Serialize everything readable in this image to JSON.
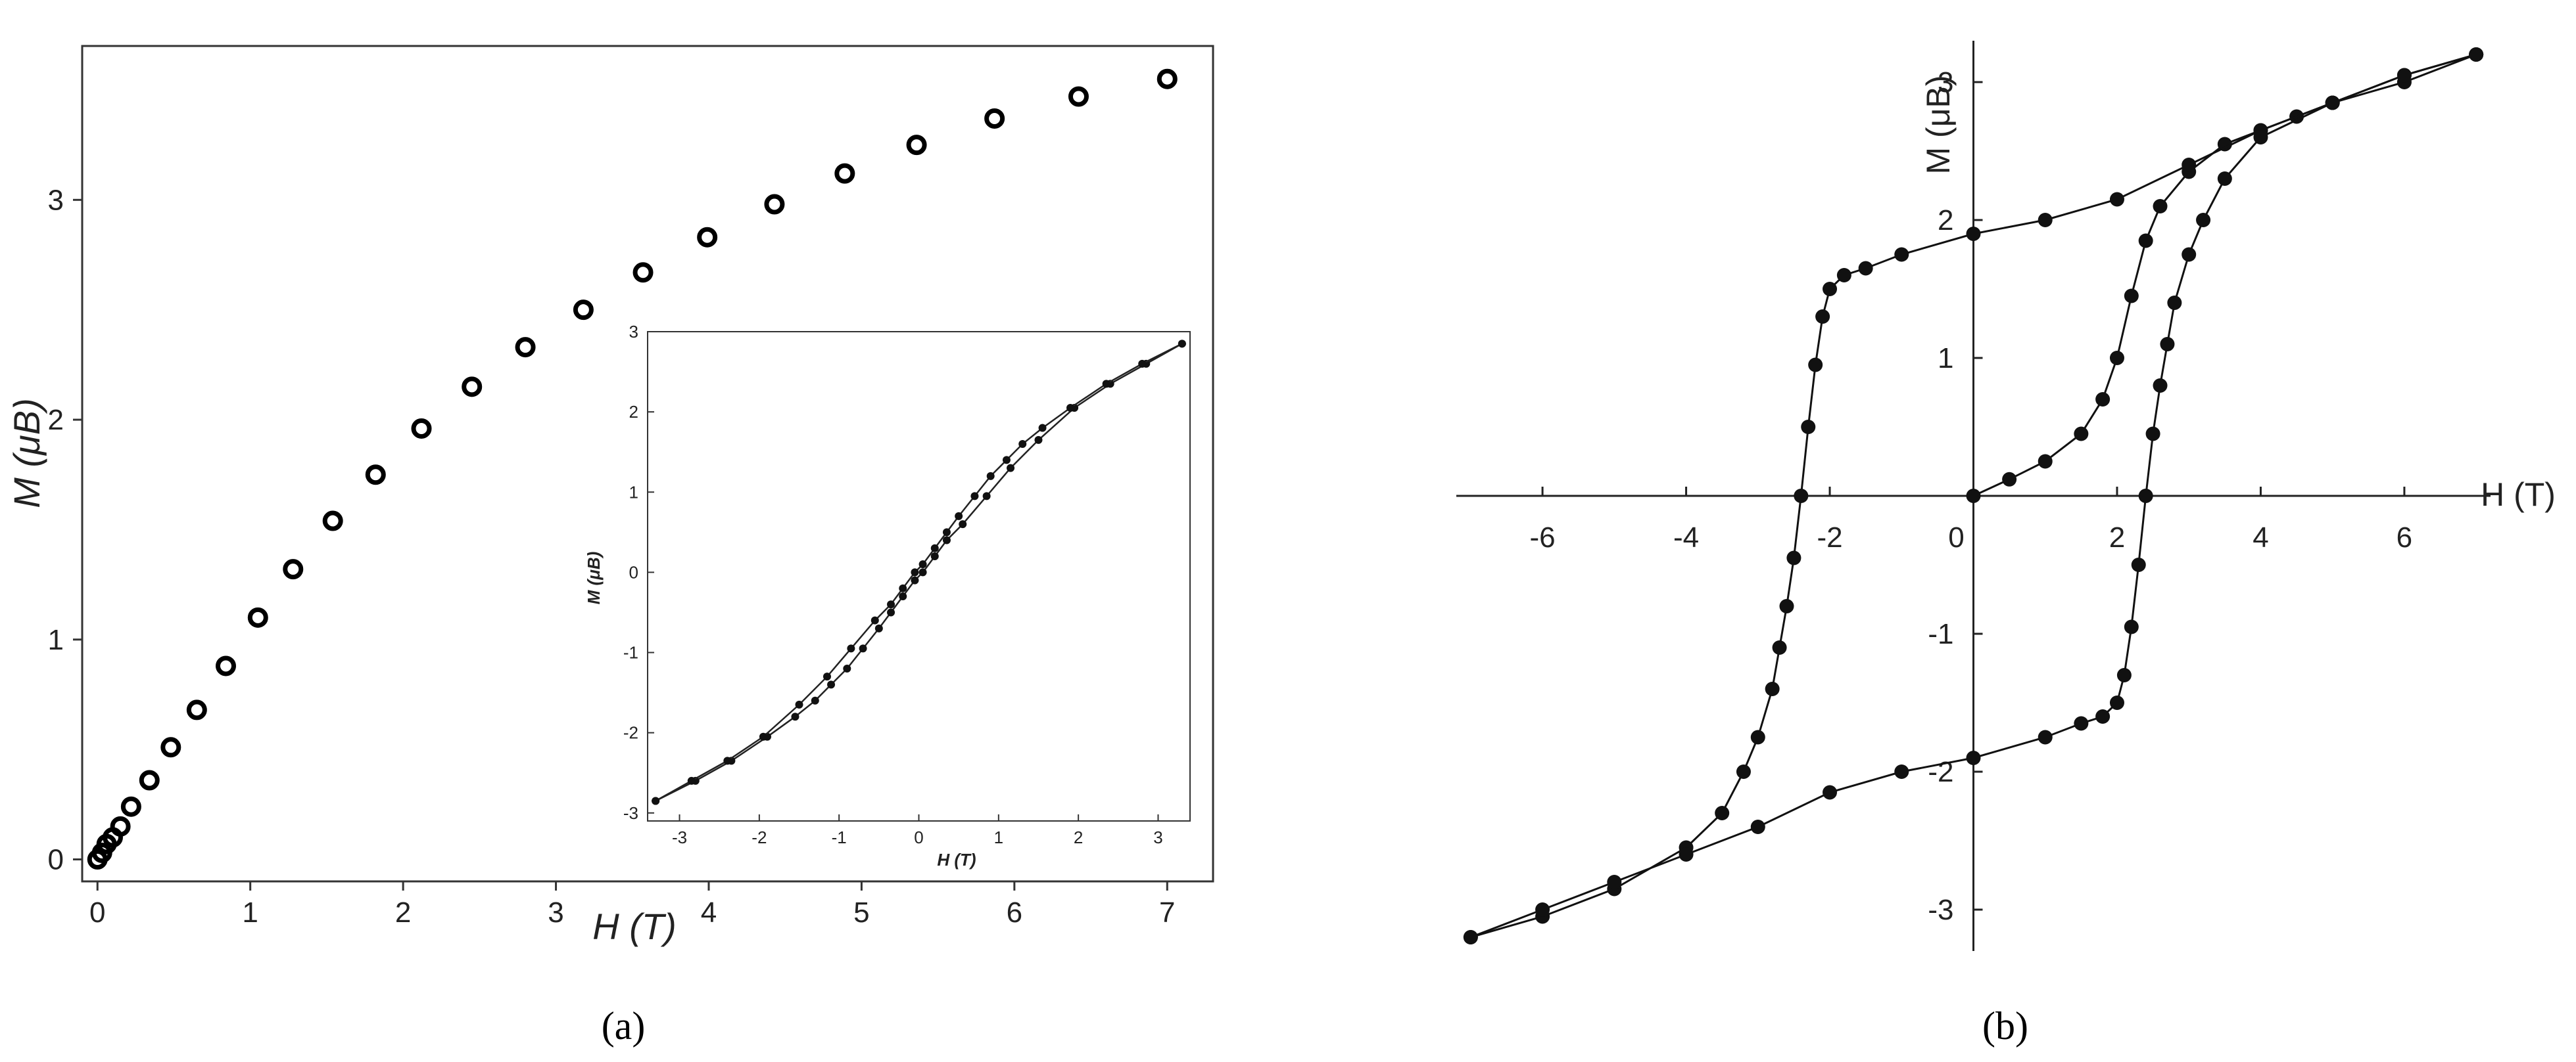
{
  "chart_data": [
    {
      "type": "scatter",
      "caption": "(a)",
      "xlabel": "H (T)",
      "ylabel": "M (μB)",
      "xlim": [
        -0.1,
        7.3
      ],
      "ylim": [
        -0.1,
        3.7
      ],
      "xticks": [
        0,
        1,
        2,
        3,
        4,
        5,
        6,
        7
      ],
      "yticks": [
        0,
        1,
        2,
        3
      ],
      "marker": "open-circle",
      "series": [
        {
          "x": [
            0.0,
            0.03,
            0.06,
            0.1,
            0.15,
            0.22,
            0.34,
            0.48,
            0.65,
            0.84,
            1.05,
            1.28,
            1.54,
            1.82,
            2.12,
            2.45,
            2.8,
            3.18,
            3.57,
            3.99,
            4.43,
            4.89,
            5.36,
            5.87,
            6.42,
            7.0
          ],
          "y": [
            0.0,
            0.03,
            0.07,
            0.1,
            0.15,
            0.24,
            0.36,
            0.51,
            0.68,
            0.88,
            1.1,
            1.32,
            1.54,
            1.75,
            1.96,
            2.15,
            2.33,
            2.5,
            2.67,
            2.83,
            2.98,
            3.12,
            3.25,
            3.37,
            3.47,
            3.55
          ]
        }
      ],
      "inset": {
        "type": "line",
        "xlabel": "H (T)",
        "ylabel": "M (μB)",
        "xlim": [
          -3.4,
          3.4
        ],
        "ylim": [
          -3.1,
          3.0
        ],
        "xticks": [
          -3,
          -2,
          -1,
          0,
          1,
          2,
          3
        ],
        "yticks": [
          -3,
          -2,
          -1,
          0,
          1,
          2,
          3
        ],
        "series": [
          {
            "x": [
              -3.3,
              -2.8,
              -2.35,
              -1.9,
              -1.55,
              -1.3,
              -1.1,
              -0.9,
              -0.7,
              -0.5,
              -0.35,
              -0.2,
              -0.05,
              0.05,
              0.2,
              0.35,
              0.55,
              0.85,
              1.15,
              1.5,
              1.95,
              2.4,
              2.85,
              3.3
            ],
            "y": [
              -2.85,
              -2.6,
              -2.35,
              -2.05,
              -1.8,
              -1.6,
              -1.4,
              -1.2,
              -0.95,
              -0.7,
              -0.5,
              -0.3,
              -0.1,
              0.0,
              0.2,
              0.4,
              0.6,
              0.95,
              1.3,
              1.65,
              2.05,
              2.35,
              2.6,
              2.85
            ]
          },
          {
            "x": [
              -3.3,
              -2.85,
              -2.4,
              -1.95,
              -1.5,
              -1.15,
              -0.85,
              -0.55,
              -0.35,
              -0.2,
              -0.05,
              0.05,
              0.2,
              0.35,
              0.5,
              0.7,
              0.9,
              1.1,
              1.3,
              1.55,
              1.9,
              2.35,
              2.8,
              3.3
            ],
            "y": [
              -2.85,
              -2.6,
              -2.35,
              -2.05,
              -1.65,
              -1.3,
              -0.95,
              -0.6,
              -0.4,
              -0.2,
              0.0,
              0.1,
              0.3,
              0.5,
              0.7,
              0.95,
              1.2,
              1.4,
              1.6,
              1.8,
              2.05,
              2.35,
              2.6,
              2.85
            ]
          }
        ]
      }
    },
    {
      "type": "line",
      "caption": "(b)",
      "xlabel": "H (T)",
      "ylabel": "M (μB)",
      "xlim": [
        -7.2,
        7.2
      ],
      "ylim": [
        -3.3,
        3.3
      ],
      "xticks": [
        -6,
        -4,
        -2,
        0,
        2,
        4,
        6
      ],
      "yticks": [
        -3,
        -2,
        -1,
        1,
        2,
        3
      ],
      "marker": "filled-circle",
      "series": [
        {
          "name_hidden": "",
          "x": [
            0.0,
            0.5,
            1.0,
            1.5,
            1.8,
            2.0,
            2.2,
            2.4,
            2.6,
            3.0,
            3.5,
            4.0,
            4.5,
            5.0,
            6.0,
            7.0
          ],
          "y": [
            0.0,
            0.12,
            0.25,
            0.45,
            0.7,
            1.0,
            1.45,
            1.85,
            2.1,
            2.35,
            2.55,
            2.65,
            2.75,
            2.85,
            3.0,
            3.2
          ]
        },
        {
          "x": [
            7.0,
            6.0,
            5.0,
            4.0,
            3.0,
            2.0,
            1.0,
            0.0,
            -1.0,
            -1.5,
            -1.8,
            -2.0,
            -2.1,
            -2.2,
            -2.3,
            -2.4,
            -2.5,
            -2.6,
            -2.7,
            -2.8,
            -3.0,
            -3.2,
            -3.5,
            -4.0,
            -5.0,
            -6.0,
            -7.0
          ],
          "y": [
            3.2,
            3.05,
            2.85,
            2.65,
            2.4,
            2.15,
            2.0,
            1.9,
            1.75,
            1.65,
            1.6,
            1.5,
            1.3,
            0.95,
            0.5,
            0.0,
            -0.45,
            -0.8,
            -1.1,
            -1.4,
            -1.75,
            -2.0,
            -2.3,
            -2.55,
            -2.85,
            -3.05,
            -3.2
          ]
        },
        {
          "x": [
            -7.0,
            -6.0,
            -5.0,
            -4.0,
            -3.0,
            -2.0,
            -1.0,
            0.0,
            1.0,
            1.5,
            1.8,
            2.0,
            2.1,
            2.2,
            2.3,
            2.4,
            2.5,
            2.6,
            2.7,
            2.8,
            3.0,
            3.2,
            3.5,
            4.0,
            5.0,
            6.0,
            7.0
          ],
          "y": [
            -3.2,
            -3.0,
            -2.8,
            -2.6,
            -2.4,
            -2.15,
            -2.0,
            -1.9,
            -1.75,
            -1.65,
            -1.6,
            -1.5,
            -1.3,
            -0.95,
            -0.5,
            0.0,
            0.45,
            0.8,
            1.1,
            1.4,
            1.75,
            2.0,
            2.3,
            2.6,
            2.85,
            3.05,
            3.2
          ]
        }
      ]
    }
  ]
}
